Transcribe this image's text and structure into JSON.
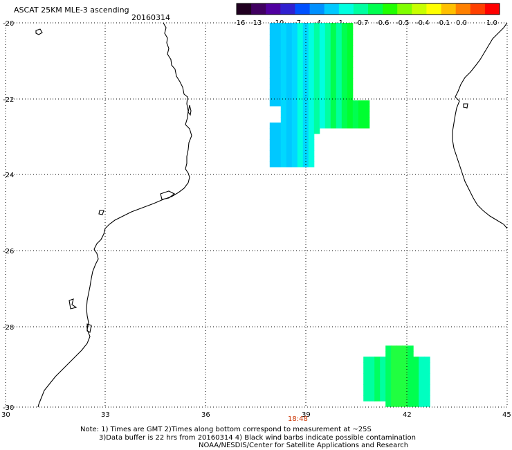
{
  "title": "ASCAT 25KM MLE-3 ascending",
  "date": "20160314",
  "colorbar": {
    "labels": [
      "-16",
      "-13",
      "-10",
      "-7",
      "-4",
      "-1",
      "-0.7",
      "-0.6",
      "-0.5",
      "-0.4",
      "-0.1",
      "0.0",
      "1.0"
    ],
    "colors": [
      "#200020",
      "#400060",
      "#5000a0",
      "#3020d0",
      "#0050ff",
      "#0090ff",
      "#00c8ff",
      "#00ffe0",
      "#00ffa0",
      "#00ff50",
      "#20ff00",
      "#80ff00",
      "#c8ff00",
      "#ffff00",
      "#ffc000",
      "#ff8000",
      "#ff4000",
      "#ff0000"
    ]
  },
  "axes": {
    "lon_labels": [
      "30",
      "33",
      "36",
      "39",
      "42",
      "45"
    ],
    "lat_labels": [
      "-20",
      "-22",
      "-24",
      "-26",
      "-28",
      "-30"
    ]
  },
  "orbit_time": "18:48",
  "notes": {
    "line1": "Note: 1) Times are GMT 2)Times along bottom correspond to measurement at ~25S",
    "line2": "3)Data buffer is 22 hrs from 20160314 4) Black wind barbs indicate possible contamination",
    "line3": "NOAA/NESDIS/Center for Satellite Applications and Research"
  },
  "swaths": {
    "north": {
      "lon_range": [
        37.9,
        40.8
      ],
      "lat_range": [
        -23.8,
        -20.0
      ],
      "colors": [
        "#00c8ff",
        "#00d8ff",
        "#00ffe0",
        "#00ffa0",
        "#00ff50",
        "#00ff30"
      ]
    },
    "south": {
      "lon_range": [
        40.7,
        42.7
      ],
      "lat_range": [
        -30.0,
        -28.4
      ],
      "colors": [
        "#00ffa0",
        "#00ff60",
        "#20ff40",
        "#00ff50",
        "#00ffc0"
      ]
    }
  }
}
